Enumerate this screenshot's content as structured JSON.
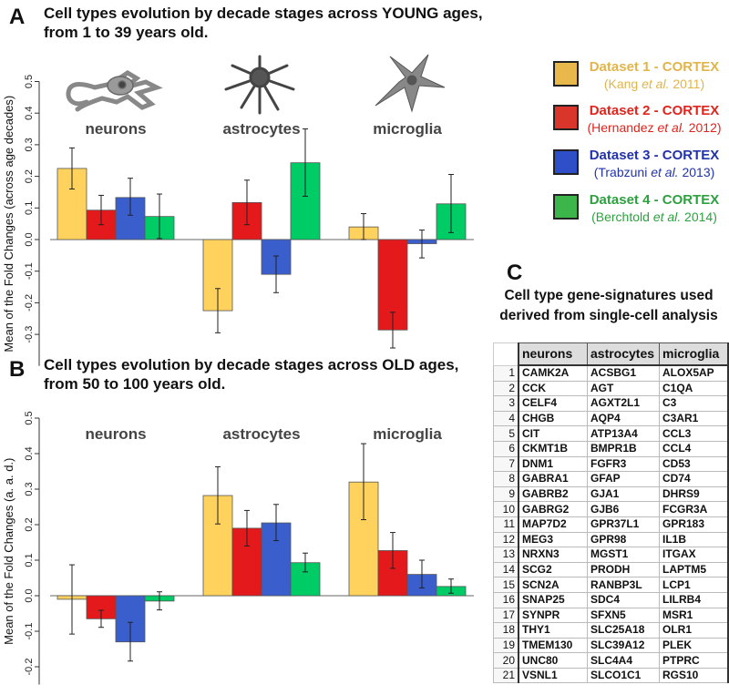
{
  "panel_a": {
    "letter": "A",
    "title_line1": "Cell types evolution by decade stages across YOUNG ages,",
    "title_line2": "from 1 to 39 years old."
  },
  "panel_b": {
    "letter": "B",
    "title_line1": "Cell types evolution by decade stages across OLD ages,",
    "title_line2": "from 50 to 100 years old."
  },
  "panel_c": {
    "letter": "C",
    "title_line1": "Cell type gene-signatures used",
    "title_line2": "derived from single-cell analysis"
  },
  "legend": [
    {
      "main": "Dataset 1 - CORTEX",
      "author": "(Kang ",
      "etal": "et al.",
      "year": " 2011)",
      "color": "#E8B94A",
      "text_color": "#E2B54C"
    },
    {
      "main": "Dataset 2 - CORTEX",
      "author": "(Hernandez ",
      "etal": "et al.",
      "year": " 2012)",
      "color": "#D9352A",
      "text_color": "#E0241C"
    },
    {
      "main": "Dataset 3 - CORTEX",
      "author": "(Trabzuni ",
      "etal": "et al.",
      "year": " 2013)",
      "color": "#2F4FC8",
      "text_color": "#2233AA"
    },
    {
      "main": "Dataset 4 - CORTEX",
      "author": "(Berchtold ",
      "etal": "et al.",
      "year": " 2014)",
      "color": "#3CB54A",
      "text_color": "#2EA040"
    }
  ],
  "chart_data": [
    {
      "type": "bar",
      "title": "Cell types evolution by decade stages across YOUNG ages, from 1 to 39 years old.",
      "ylabel": "Mean of the Fold Changes (across age decades)",
      "ylim": [
        -0.4,
        0.5
      ],
      "yticks": [
        "-0.3",
        "-0.2",
        "-0.1",
        "0.0",
        "0.1",
        "0.2",
        "0.3",
        "0.4",
        "0.5"
      ],
      "categories": [
        "neurons",
        "astrocytes",
        "microglia"
      ],
      "series": [
        {
          "name": "Dataset 1 - CORTEX",
          "color": "#FFD25E",
          "values": [
            0.225,
            -0.225,
            0.04
          ],
          "error": [
            [
              0.16,
              0.29
            ],
            [
              -0.295,
              -0.155
            ],
            [
              0.0,
              0.082
            ]
          ]
        },
        {
          "name": "Dataset 2 - CORTEX",
          "color": "#E3191C",
          "values": [
            0.093,
            0.117,
            -0.286
          ],
          "error": [
            [
              0.047,
              0.14
            ],
            [
              0.047,
              0.188
            ],
            [
              -0.343,
              -0.23
            ]
          ]
        },
        {
          "name": "Dataset 3 - CORTEX",
          "color": "#3A5FCD",
          "values": [
            0.133,
            -0.11,
            -0.013
          ],
          "error": [
            [
              0.077,
              0.194
            ],
            [
              -0.168,
              -0.052
            ],
            [
              -0.058,
              0.03
            ]
          ]
        },
        {
          "name": "Dataset 4 - CORTEX",
          "color": "#00CC66",
          "values": [
            0.073,
            0.243,
            0.113
          ],
          "error": [
            [
              0.003,
              0.144
            ],
            [
              0.137,
              0.35
            ],
            [
              0.022,
              0.206
            ]
          ]
        }
      ]
    },
    {
      "type": "bar",
      "title": "Cell types evolution by decade stages across OLD ages, from 50 to 100 years old.",
      "ylabel": "Mean of the Fold Changes (a. a. d.)",
      "ylim": [
        -0.25,
        0.5
      ],
      "yticks": [
        "-0.2",
        "-0.1",
        "0.0",
        "0.1",
        "0.2",
        "0.3",
        "0.4",
        "0.5"
      ],
      "categories": [
        "neurons",
        "astrocytes",
        "microglia"
      ],
      "series": [
        {
          "name": "Dataset 1 - CORTEX",
          "color": "#FFD25E",
          "values": [
            -0.01,
            0.282,
            0.32
          ],
          "error": [
            [
              -0.108,
              0.087
            ],
            [
              0.202,
              0.363
            ],
            [
              0.214,
              0.428
            ]
          ]
        },
        {
          "name": "Dataset 2 - CORTEX",
          "color": "#E3191C",
          "values": [
            -0.065,
            0.19,
            0.127
          ],
          "error": [
            [
              -0.089,
              -0.041
            ],
            [
              0.14,
              0.24
            ],
            [
              0.077,
              0.178
            ]
          ]
        },
        {
          "name": "Dataset 3 - CORTEX",
          "color": "#3A5FCD",
          "values": [
            -0.13,
            0.205,
            0.06
          ],
          "error": [
            [
              -0.184,
              -0.075
            ],
            [
              0.155,
              0.257
            ],
            [
              0.022,
              0.1
            ]
          ]
        },
        {
          "name": "Dataset 4 - CORTEX",
          "color": "#00CC66",
          "values": [
            -0.015,
            0.093,
            0.026
          ],
          "error": [
            [
              -0.04,
              0.011
            ],
            [
              0.067,
              0.12
            ],
            [
              0.007,
              0.047
            ]
          ]
        }
      ]
    }
  ],
  "table": {
    "headers": [
      "neurons",
      "astrocytes",
      "microglia"
    ],
    "rows": [
      [
        "1",
        "CAMK2A",
        "ACSBG1",
        "ALOX5AP"
      ],
      [
        "2",
        "CCK",
        "AGT",
        "C1QA"
      ],
      [
        "3",
        "CELF4",
        "AGXT2L1",
        "C3"
      ],
      [
        "4",
        "CHGB",
        "AQP4",
        "C3AR1"
      ],
      [
        "5",
        "CIT",
        "ATP13A4",
        "CCL3"
      ],
      [
        "6",
        "CKMT1B",
        "BMPR1B",
        "CCL4"
      ],
      [
        "7",
        "DNM1",
        "FGFR3",
        "CD53"
      ],
      [
        "8",
        "GABRA1",
        "GFAP",
        "CD74"
      ],
      [
        "9",
        "GABRB2",
        "GJA1",
        "DHRS9"
      ],
      [
        "10",
        "GABRG2",
        "GJB6",
        "FCGR3A"
      ],
      [
        "11",
        "MAP7D2",
        "GPR37L1",
        "GPR183"
      ],
      [
        "12",
        "MEG3",
        "GPR98",
        "IL1B"
      ],
      [
        "13",
        "NRXN3",
        "MGST1",
        "ITGAX"
      ],
      [
        "14",
        "SCG2",
        "PRODH",
        "LAPTM5"
      ],
      [
        "15",
        "SCN2A",
        "RANBP3L",
        "LCP1"
      ],
      [
        "16",
        "SNAP25",
        "SDC4",
        "LILRB4"
      ],
      [
        "17",
        "SYNPR",
        "SFXN5",
        "MSR1"
      ],
      [
        "18",
        "THY1",
        "SLC25A18",
        "OLR1"
      ],
      [
        "19",
        "TMEM130",
        "SLC39A12",
        "PLEK"
      ],
      [
        "20",
        "UNC80",
        "SLC4A4",
        "PTPRC"
      ],
      [
        "21",
        "VSNL1",
        "SLCO1C1",
        "RGS10"
      ]
    ]
  }
}
